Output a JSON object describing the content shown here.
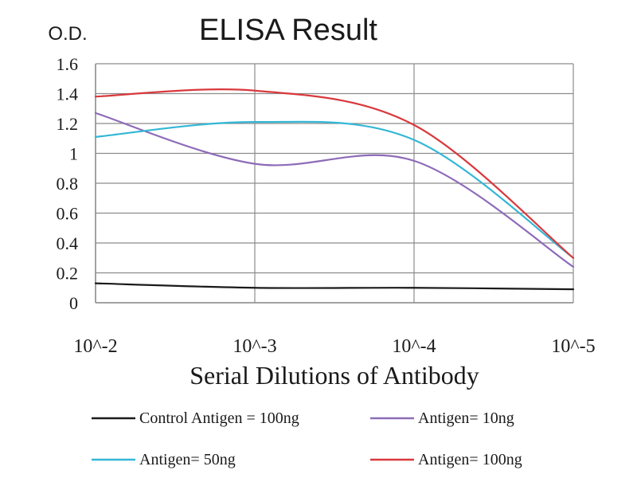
{
  "chart_data": {
    "type": "line",
    "title": "ELISA Result",
    "ylabel": "O.D.",
    "xlabel": "Serial Dilutions of Antibody",
    "categories": [
      "10^-2",
      "10^-3",
      "10^-4",
      "10^-5"
    ],
    "ylim": [
      0,
      1.6
    ],
    "yticks": [
      "0",
      "0.2",
      "0.4",
      "0.6",
      "0.8",
      "1",
      "1.2",
      "1.4",
      "1.6"
    ],
    "grid": true,
    "legend_position": "bottom",
    "series": [
      {
        "name": "Control Antigen = 100ng",
        "color": "#1a1a1a",
        "values": [
          0.13,
          0.1,
          0.1,
          0.09
        ]
      },
      {
        "name": "Antigen= 10ng",
        "color": "#8e6bb8",
        "values": [
          1.27,
          0.93,
          0.95,
          0.24
        ]
      },
      {
        "name": "Antigen= 50ng",
        "color": "#33b7d6",
        "values": [
          1.11,
          1.21,
          1.09,
          0.3
        ]
      },
      {
        "name": "Antigen= 100ng",
        "color": "#d9393d",
        "values": [
          1.38,
          1.42,
          1.19,
          0.3
        ]
      }
    ]
  }
}
